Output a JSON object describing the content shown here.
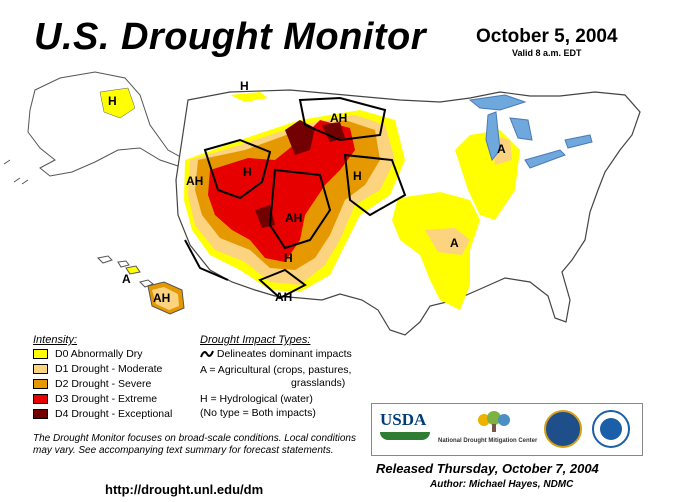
{
  "header": {
    "title": "U.S. Drought Monitor",
    "date": "October 5, 2004",
    "valid": "Valid 8 a.m. EDT"
  },
  "map": {
    "labels": [
      "H",
      "H",
      "AH",
      "A",
      "H",
      "AH",
      "H",
      "AH",
      "H",
      "A",
      "H",
      "AH",
      "A",
      "AH"
    ]
  },
  "legend": {
    "title": "Intensity:",
    "items": [
      {
        "label": "D0 Abnormally Dry",
        "color": "#ffff00"
      },
      {
        "label": "D1 Drought - Moderate",
        "color": "#fcd37f"
      },
      {
        "label": "D2 Drought - Severe",
        "color": "#e69800"
      },
      {
        "label": "D3 Drought - Extreme",
        "color": "#e60000"
      },
      {
        "label": "D4 Drought - Exceptional",
        "color": "#730000"
      }
    ]
  },
  "impacts": {
    "title": "Drought Impact Types:",
    "delineates": "Delineates dominant impacts",
    "agricultural": "A = Agricultural (crops, pastures,",
    "agricultural_cont": "grasslands)",
    "hydrological": "H = Hydrological (water)",
    "both": "(No type = Both impacts)"
  },
  "note": "The Drought Monitor focuses on broad-scale conditions. Local conditions may vary.  See accompanying text summary for forecast statements.",
  "url": "http://drought.unl.edu/dm",
  "logos": {
    "usda": "USDA",
    "ndmc": "National Drought Mitigation Center"
  },
  "released": "Released Thursday, October 7, 2004",
  "author": "Author: Michael Hayes, NDMC"
}
